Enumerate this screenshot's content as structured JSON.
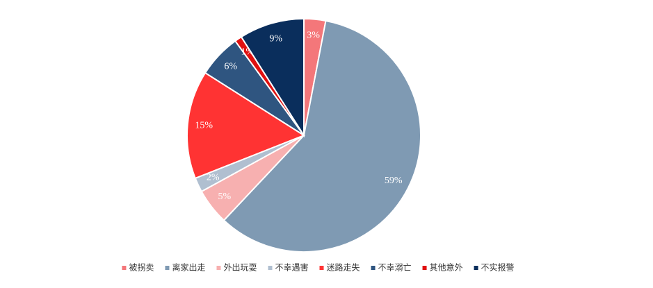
{
  "chart_data": {
    "type": "pie",
    "categories": [
      "被拐卖",
      "离家出走",
      "外出玩耍",
      "不幸遇害",
      "迷路走失",
      "不幸溺亡",
      "其他意外",
      "不实报警"
    ],
    "values": [
      3,
      59,
      5,
      2,
      15,
      6,
      1,
      9
    ],
    "value_labels": [
      "3%",
      "59%",
      "5%",
      "2%",
      "15%",
      "6%",
      "1%",
      "9%"
    ],
    "colors": [
      "#f4777a",
      "#7f9ab3",
      "#f7b0b0",
      "#b0bfd0",
      "#ff3333",
      "#2f5580",
      "#e01010",
      "#0a2e5c"
    ],
    "legend": "bottom"
  }
}
